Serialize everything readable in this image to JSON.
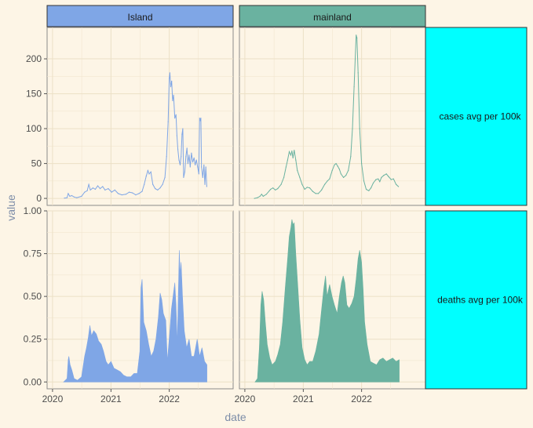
{
  "chart_data": {
    "type": "faceted",
    "xlabel": "date",
    "ylabel": "value",
    "columns": [
      {
        "label": "Island",
        "color": "#7fa6e6"
      },
      {
        "label": "mainland",
        "color": "#6ab2a0"
      }
    ],
    "rows": [
      {
        "label": "cases avg per 100k",
        "kind": "line",
        "ylim": [
          -10,
          245
        ],
        "yticks": [
          0,
          50,
          100,
          150,
          200
        ],
        "ytick_labels": [
          "0",
          "50",
          "100",
          "150",
          "200"
        ]
      },
      {
        "label": "deaths avg per 100k",
        "kind": "area",
        "ylim": [
          -0.04,
          1.0
        ],
        "yticks": [
          0.0,
          0.25,
          0.5,
          0.75,
          1.0
        ],
        "ytick_labels": [
          "0.00",
          "0.25",
          "0.50",
          "0.75",
          "1.00"
        ]
      }
    ],
    "xlim": [
      "2019-11-28",
      "2023-02-05"
    ],
    "xticks": [
      {
        "date": "2020-01-01",
        "label": "2020"
      },
      {
        "date": "2021-01-01",
        "label": "2021"
      },
      {
        "date": "2022-01-01",
        "label": "2022"
      }
    ],
    "strip_bg_row": "#00ffff",
    "panels": {
      "Island|cases": [
        [
          "2020-03-15",
          0.5
        ],
        [
          "2020-04-01",
          1
        ],
        [
          "2020-04-08",
          7
        ],
        [
          "2020-04-18",
          3
        ],
        [
          "2020-05-01",
          4
        ],
        [
          "2020-05-15",
          2
        ],
        [
          "2020-06-01",
          1
        ],
        [
          "2020-07-01",
          3
        ],
        [
          "2020-07-20",
          9
        ],
        [
          "2020-08-05",
          11
        ],
        [
          "2020-08-15",
          20
        ],
        [
          "2020-08-25",
          12
        ],
        [
          "2020-09-10",
          15
        ],
        [
          "2020-09-25",
          13
        ],
        [
          "2020-10-10",
          18
        ],
        [
          "2020-10-25",
          14
        ],
        [
          "2020-11-10",
          17
        ],
        [
          "2020-11-25",
          12
        ],
        [
          "2020-12-15",
          14
        ],
        [
          "2021-01-05",
          9
        ],
        [
          "2021-01-25",
          12
        ],
        [
          "2021-02-15",
          7
        ],
        [
          "2021-03-10",
          5
        ],
        [
          "2021-04-05",
          6
        ],
        [
          "2021-04-25",
          9
        ],
        [
          "2021-05-15",
          8
        ],
        [
          "2021-06-05",
          5
        ],
        [
          "2021-06-25",
          7
        ],
        [
          "2021-07-15",
          10
        ],
        [
          "2021-07-28",
          20
        ],
        [
          "2021-08-10",
          32
        ],
        [
          "2021-08-20",
          40
        ],
        [
          "2021-08-28",
          35
        ],
        [
          "2021-09-08",
          38
        ],
        [
          "2021-09-20",
          20
        ],
        [
          "2021-10-05",
          14
        ],
        [
          "2021-10-20",
          12
        ],
        [
          "2021-11-05",
          15
        ],
        [
          "2021-11-20",
          20
        ],
        [
          "2021-12-05",
          30
        ],
        [
          "2021-12-15",
          60
        ],
        [
          "2021-12-25",
          110
        ],
        [
          "2022-01-01",
          172
        ],
        [
          "2022-01-05",
          180
        ],
        [
          "2022-01-10",
          160
        ],
        [
          "2022-01-16",
          168
        ],
        [
          "2022-01-22",
          140
        ],
        [
          "2022-01-28",
          148
        ],
        [
          "2022-02-05",
          115
        ],
        [
          "2022-02-12",
          120
        ],
        [
          "2022-02-18",
          90
        ],
        [
          "2022-02-24",
          70
        ],
        [
          "2022-03-03",
          55
        ],
        [
          "2022-03-10",
          48
        ],
        [
          "2022-03-16",
          60
        ],
        [
          "2022-03-22",
          92
        ],
        [
          "2022-03-27",
          100
        ],
        [
          "2022-04-01",
          30
        ],
        [
          "2022-04-08",
          38
        ],
        [
          "2022-04-15",
          60
        ],
        [
          "2022-04-22",
          72
        ],
        [
          "2022-04-28",
          50
        ],
        [
          "2022-05-05",
          62
        ],
        [
          "2022-05-12",
          45
        ],
        [
          "2022-05-20",
          65
        ],
        [
          "2022-05-28",
          52
        ],
        [
          "2022-06-05",
          58
        ],
        [
          "2022-06-12",
          48
        ],
        [
          "2022-06-20",
          55
        ],
        [
          "2022-06-28",
          45
        ],
        [
          "2022-07-05",
          35
        ],
        [
          "2022-07-10",
          115
        ],
        [
          "2022-07-14",
          112
        ],
        [
          "2022-07-18",
          115
        ],
        [
          "2022-07-22",
          45
        ],
        [
          "2022-07-30",
          30
        ],
        [
          "2022-08-06",
          48
        ],
        [
          "2022-08-12",
          20
        ],
        [
          "2022-08-18",
          45
        ],
        [
          "2022-08-24",
          17
        ]
      ],
      "mainland|cases": [
        [
          "2020-03-01",
          0
        ],
        [
          "2020-03-20",
          1
        ],
        [
          "2020-04-05",
          3
        ],
        [
          "2020-04-15",
          6
        ],
        [
          "2020-04-25",
          3
        ],
        [
          "2020-05-15",
          6
        ],
        [
          "2020-06-10",
          13
        ],
        [
          "2020-06-25",
          15
        ],
        [
          "2020-07-10",
          12
        ],
        [
          "2020-07-25",
          14
        ],
        [
          "2020-08-15",
          20
        ],
        [
          "2020-09-01",
          30
        ],
        [
          "2020-09-15",
          45
        ],
        [
          "2020-09-25",
          55
        ],
        [
          "2020-10-05",
          67
        ],
        [
          "2020-10-15",
          62
        ],
        [
          "2020-10-22",
          68
        ],
        [
          "2020-10-28",
          58
        ],
        [
          "2020-11-05",
          69
        ],
        [
          "2020-11-15",
          55
        ],
        [
          "2020-11-25",
          40
        ],
        [
          "2020-12-10",
          30
        ],
        [
          "2020-12-25",
          20
        ],
        [
          "2021-01-10",
          13
        ],
        [
          "2021-01-25",
          16
        ],
        [
          "2021-02-10",
          15
        ],
        [
          "2021-03-01",
          10
        ],
        [
          "2021-03-20",
          7
        ],
        [
          "2021-04-05",
          7
        ],
        [
          "2021-04-25",
          12
        ],
        [
          "2021-05-15",
          20
        ],
        [
          "2021-06-01",
          25
        ],
        [
          "2021-06-15",
          28
        ],
        [
          "2021-07-01",
          40
        ],
        [
          "2021-07-15",
          48
        ],
        [
          "2021-07-25",
          50
        ],
        [
          "2021-08-05",
          46
        ],
        [
          "2021-08-15",
          42
        ],
        [
          "2021-08-25",
          35
        ],
        [
          "2021-09-10",
          30
        ],
        [
          "2021-09-25",
          33
        ],
        [
          "2021-10-10",
          40
        ],
        [
          "2021-10-25",
          60
        ],
        [
          "2021-11-05",
          100
        ],
        [
          "2021-11-15",
          160
        ],
        [
          "2021-11-22",
          200
        ],
        [
          "2021-11-28",
          234
        ],
        [
          "2021-12-03",
          230
        ],
        [
          "2021-12-10",
          180
        ],
        [
          "2021-12-20",
          100
        ],
        [
          "2022-01-01",
          50
        ],
        [
          "2022-01-15",
          25
        ],
        [
          "2022-01-30",
          13
        ],
        [
          "2022-02-15",
          11
        ],
        [
          "2022-03-01",
          15
        ],
        [
          "2022-03-15",
          22
        ],
        [
          "2022-04-01",
          27
        ],
        [
          "2022-04-15",
          28
        ],
        [
          "2022-04-25",
          24
        ],
        [
          "2022-05-05",
          30
        ],
        [
          "2022-05-20",
          33
        ],
        [
          "2022-06-05",
          35
        ],
        [
          "2022-06-20",
          31
        ],
        [
          "2022-07-05",
          27
        ],
        [
          "2022-07-20",
          28
        ],
        [
          "2022-08-05",
          20
        ],
        [
          "2022-08-20",
          17
        ]
      ],
      "Island|deaths": [
        [
          "2020-03-10",
          0
        ],
        [
          "2020-04-01",
          0.02
        ],
        [
          "2020-04-08",
          0.13
        ],
        [
          "2020-04-12",
          0.15
        ],
        [
          "2020-04-20",
          0.1
        ],
        [
          "2020-05-01",
          0.07
        ],
        [
          "2020-05-15",
          0.02
        ],
        [
          "2020-06-05",
          0.01
        ],
        [
          "2020-07-01",
          0.03
        ],
        [
          "2020-07-20",
          0.15
        ],
        [
          "2020-08-01",
          0.2
        ],
        [
          "2020-08-12",
          0.26
        ],
        [
          "2020-08-22",
          0.33
        ],
        [
          "2020-09-01",
          0.27
        ],
        [
          "2020-09-15",
          0.3
        ],
        [
          "2020-10-01",
          0.28
        ],
        [
          "2020-10-15",
          0.24
        ],
        [
          "2020-11-01",
          0.22
        ],
        [
          "2020-11-15",
          0.18
        ],
        [
          "2020-12-01",
          0.12
        ],
        [
          "2020-12-15",
          0.1
        ],
        [
          "2021-01-01",
          0.12
        ],
        [
          "2021-01-20",
          0.08
        ],
        [
          "2021-02-10",
          0.07
        ],
        [
          "2021-03-01",
          0.06
        ],
        [
          "2021-03-20",
          0.04
        ],
        [
          "2021-04-10",
          0.03
        ],
        [
          "2021-05-05",
          0.03
        ],
        [
          "2021-05-25",
          0.05
        ],
        [
          "2021-06-15",
          0.05
        ],
        [
          "2021-07-01",
          0.18
        ],
        [
          "2021-07-08",
          0.55
        ],
        [
          "2021-07-15",
          0.6
        ],
        [
          "2021-07-25",
          0.35
        ],
        [
          "2021-08-10",
          0.3
        ],
        [
          "2021-08-25",
          0.22
        ],
        [
          "2021-09-10",
          0.15
        ],
        [
          "2021-09-25",
          0.18
        ],
        [
          "2021-10-10",
          0.25
        ],
        [
          "2021-10-25",
          0.38
        ],
        [
          "2021-11-05",
          0.52
        ],
        [
          "2021-11-15",
          0.48
        ],
        [
          "2021-11-25",
          0.4
        ],
        [
          "2021-12-10",
          0.36
        ],
        [
          "2021-12-20",
          0.12
        ],
        [
          "2022-01-05",
          0.3
        ],
        [
          "2022-01-15",
          0.43
        ],
        [
          "2022-01-25",
          0.5
        ],
        [
          "2022-02-05",
          0.58
        ],
        [
          "2022-02-12",
          0.45
        ],
        [
          "2022-02-20",
          0.22
        ],
        [
          "2022-03-01",
          0.6
        ],
        [
          "2022-03-05",
          0.77
        ],
        [
          "2022-03-10",
          0.63
        ],
        [
          "2022-03-16",
          0.7
        ],
        [
          "2022-03-25",
          0.5
        ],
        [
          "2022-04-05",
          0.3
        ],
        [
          "2022-04-20",
          0.2
        ],
        [
          "2022-05-05",
          0.25
        ],
        [
          "2022-05-20",
          0.15
        ],
        [
          "2022-06-05",
          0.15
        ],
        [
          "2022-06-25",
          0.25
        ],
        [
          "2022-07-10",
          0.15
        ],
        [
          "2022-07-25",
          0.2
        ],
        [
          "2022-08-10",
          0.12
        ],
        [
          "2022-08-25",
          0.1
        ]
      ],
      "mainland|deaths": [
        [
          "2020-03-05",
          0
        ],
        [
          "2020-03-20",
          0.02
        ],
        [
          "2020-04-01",
          0.2
        ],
        [
          "2020-04-10",
          0.45
        ],
        [
          "2020-04-18",
          0.53
        ],
        [
          "2020-04-28",
          0.48
        ],
        [
          "2020-05-08",
          0.35
        ],
        [
          "2020-05-20",
          0.22
        ],
        [
          "2020-06-05",
          0.14
        ],
        [
          "2020-06-20",
          0.1
        ],
        [
          "2020-07-10",
          0.12
        ],
        [
          "2020-07-25",
          0.16
        ],
        [
          "2020-08-10",
          0.22
        ],
        [
          "2020-08-25",
          0.35
        ],
        [
          "2020-09-10",
          0.55
        ],
        [
          "2020-09-25",
          0.72
        ],
        [
          "2020-10-05",
          0.85
        ],
        [
          "2020-10-15",
          0.9
        ],
        [
          "2020-10-22",
          0.95
        ],
        [
          "2020-10-28",
          0.92
        ],
        [
          "2020-11-05",
          0.93
        ],
        [
          "2020-11-15",
          0.75
        ],
        [
          "2020-11-28",
          0.55
        ],
        [
          "2020-12-10",
          0.37
        ],
        [
          "2020-12-25",
          0.2
        ],
        [
          "2021-01-10",
          0.13
        ],
        [
          "2021-01-25",
          0.1
        ],
        [
          "2021-02-10",
          0.12
        ],
        [
          "2021-03-01",
          0.12
        ],
        [
          "2021-03-20",
          0.18
        ],
        [
          "2021-04-10",
          0.28
        ],
        [
          "2021-04-25",
          0.42
        ],
        [
          "2021-05-10",
          0.55
        ],
        [
          "2021-05-20",
          0.62
        ],
        [
          "2021-05-30",
          0.5
        ],
        [
          "2021-06-15",
          0.57
        ],
        [
          "2021-06-30",
          0.5
        ],
        [
          "2021-07-15",
          0.45
        ],
        [
          "2021-08-01",
          0.4
        ],
        [
          "2021-08-15",
          0.5
        ],
        [
          "2021-08-28",
          0.58
        ],
        [
          "2021-09-08",
          0.62
        ],
        [
          "2021-09-18",
          0.58
        ],
        [
          "2021-10-01",
          0.45
        ],
        [
          "2021-10-15",
          0.43
        ],
        [
          "2021-11-01",
          0.46
        ],
        [
          "2021-11-15",
          0.5
        ],
        [
          "2021-11-28",
          0.6
        ],
        [
          "2021-12-10",
          0.72
        ],
        [
          "2021-12-20",
          0.77
        ],
        [
          "2022-01-01",
          0.7
        ],
        [
          "2022-01-10",
          0.55
        ],
        [
          "2022-01-20",
          0.35
        ],
        [
          "2022-02-05",
          0.22
        ],
        [
          "2022-02-25",
          0.12
        ],
        [
          "2022-03-15",
          0.11
        ],
        [
          "2022-04-05",
          0.1
        ],
        [
          "2022-04-25",
          0.13
        ],
        [
          "2022-05-15",
          0.14
        ],
        [
          "2022-06-05",
          0.12
        ],
        [
          "2022-06-25",
          0.13
        ],
        [
          "2022-07-15",
          0.14
        ],
        [
          "2022-08-05",
          0.12
        ],
        [
          "2022-08-25",
          0.13
        ]
      ]
    }
  }
}
